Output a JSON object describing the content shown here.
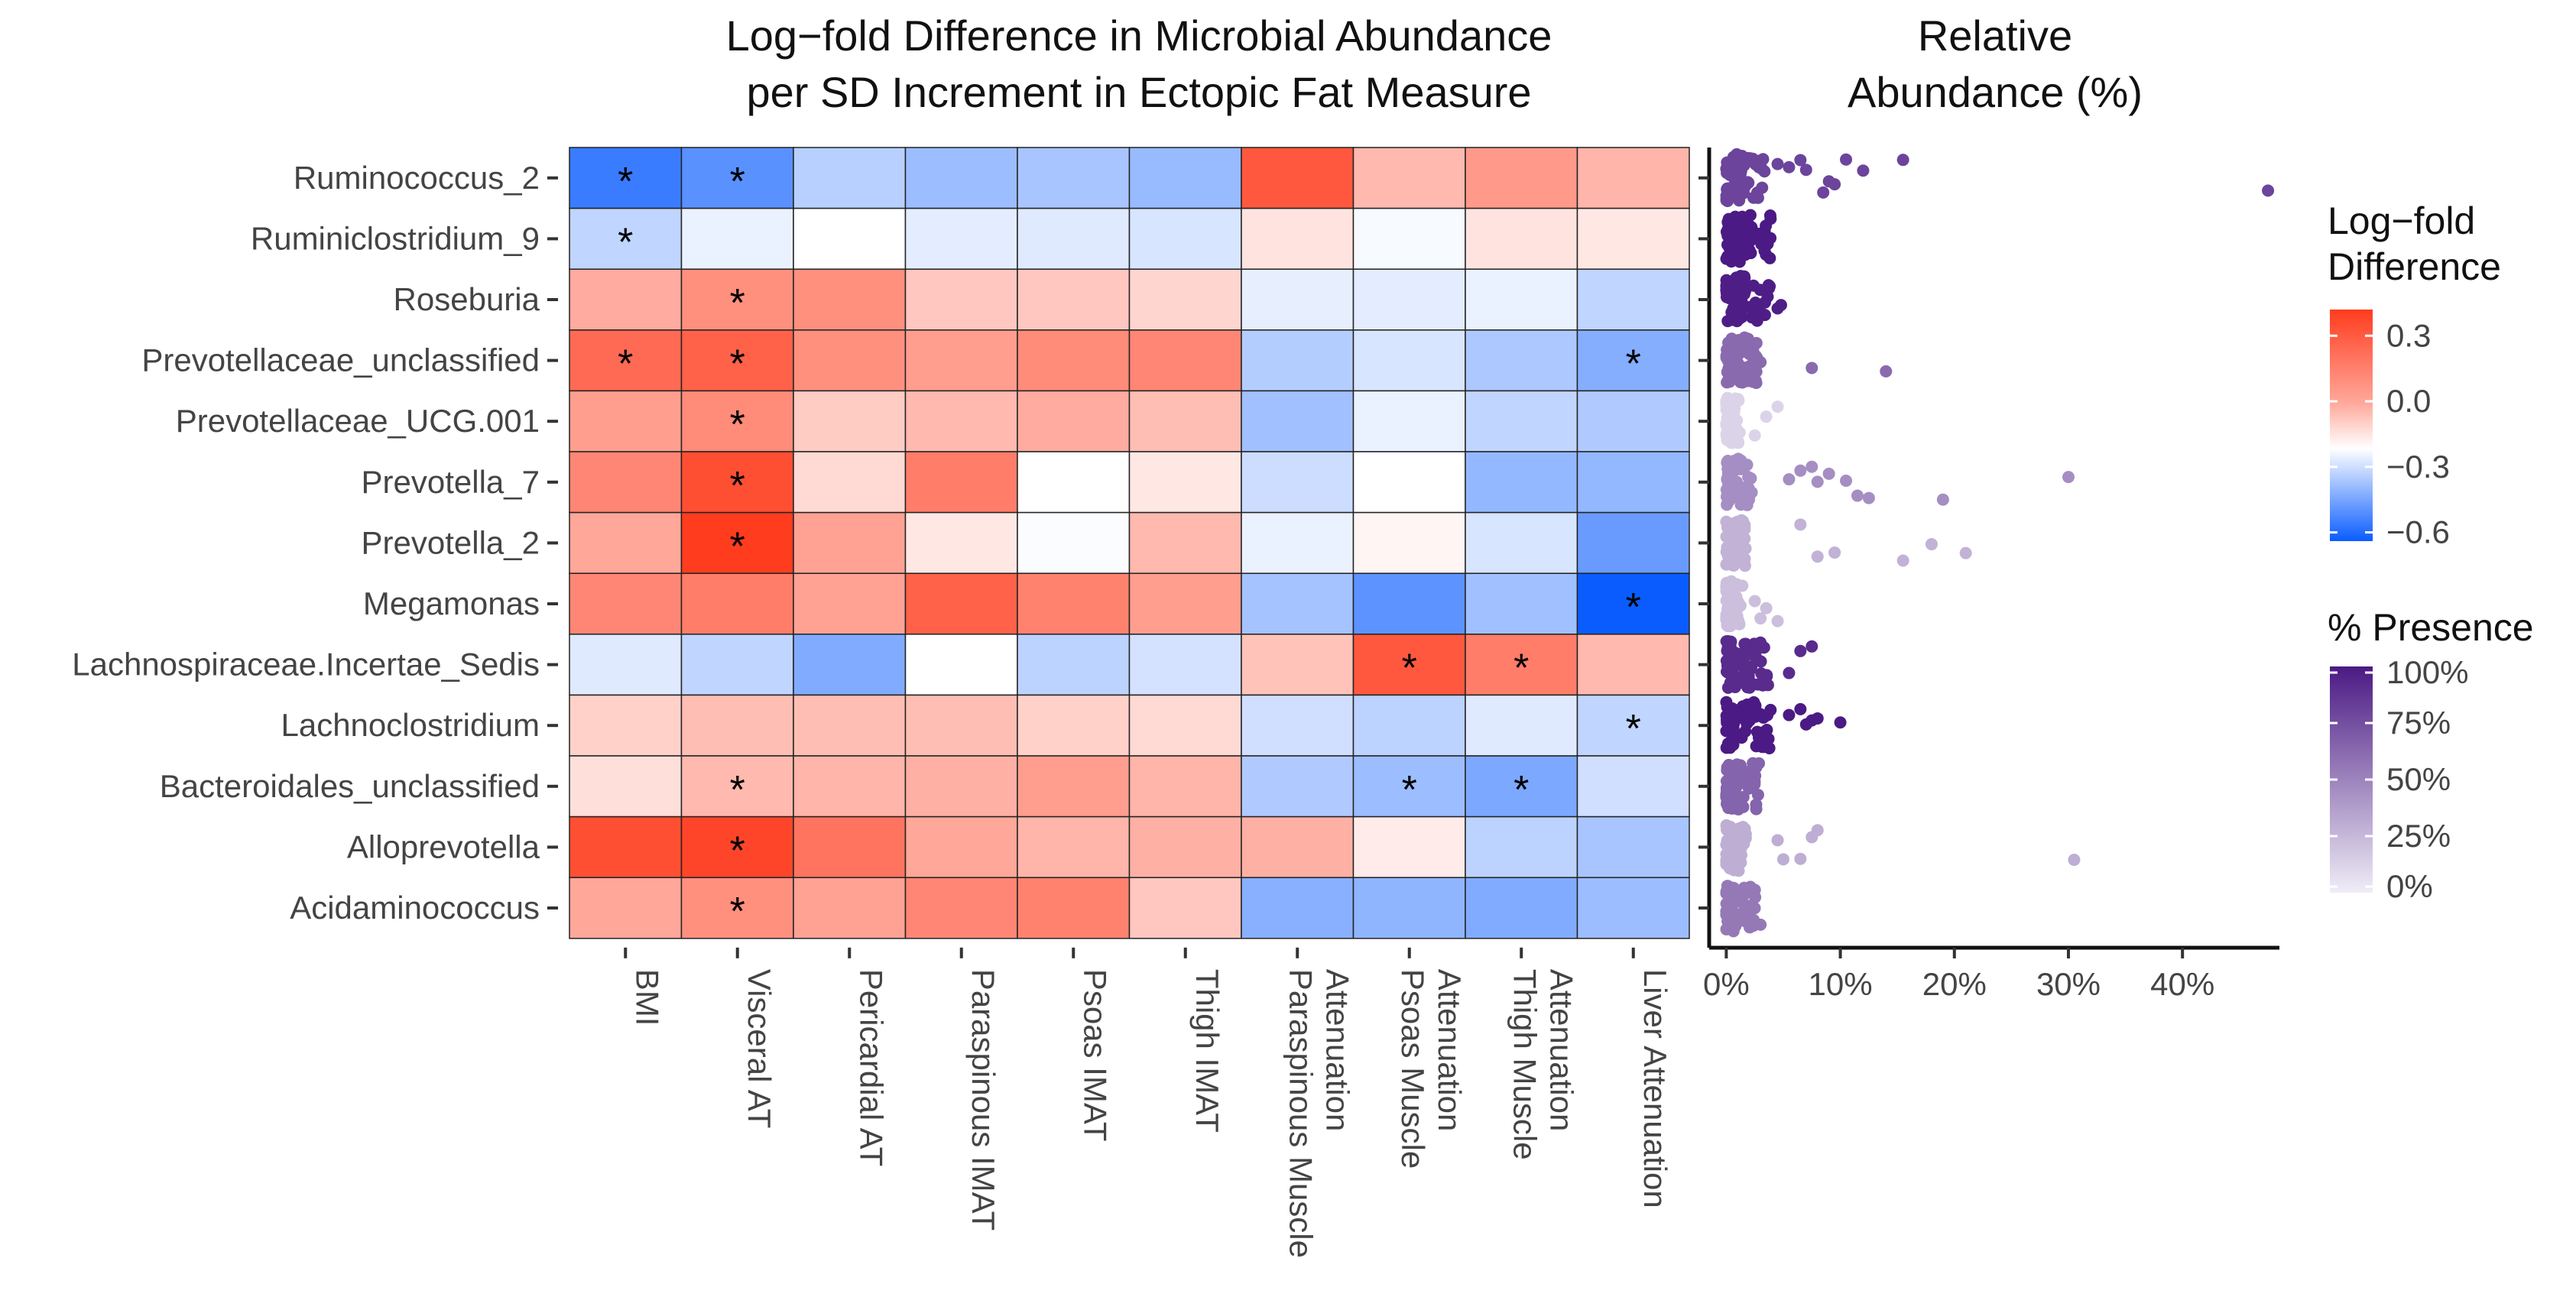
{
  "chart_data": [
    {
      "type": "heatmap",
      "title_lines": [
        "Log−fold Difference in Microbial Abundance",
        "per SD Increment in Ectopic Fat Measure"
      ],
      "rows": [
        "Ruminococcus_2",
        "Ruminiclostridium_9",
        "Roseburia",
        "Prevotellaceae_unclassified",
        "Prevotellaceae_UCG.001",
        "Prevotella_7",
        "Prevotella_2",
        "Megamonas",
        "Lachnospiraceae.Incertae_Sedis",
        "Lachnoclostridium",
        "Bacteroidales_unclassified",
        "Alloprevotella",
        "Acidaminococcus"
      ],
      "columns": [
        [
          "BMI"
        ],
        [
          "Visceral AT"
        ],
        [
          "Pericardial AT"
        ],
        [
          "Paraspinous IMAT"
        ],
        [
          "Psoas IMAT"
        ],
        [
          "Thigh IMAT"
        ],
        [
          "Paraspinous Muscle",
          "Attenuation"
        ],
        [
          "Psoas Muscle",
          "Attenuation"
        ],
        [
          "Thigh Muscle",
          "Attenuation"
        ],
        [
          "Liver Attenuation"
        ]
      ],
      "values": [
        [
          -0.5,
          -0.42,
          -0.18,
          -0.25,
          -0.22,
          -0.26,
          0.36,
          0.15,
          0.22,
          0.16
        ],
        [
          -0.16,
          -0.05,
          0.0,
          -0.07,
          -0.08,
          -0.1,
          0.06,
          -0.02,
          0.06,
          0.05
        ],
        [
          0.18,
          0.24,
          0.24,
          0.12,
          0.12,
          0.09,
          -0.06,
          -0.07,
          -0.05,
          -0.16
        ],
        [
          0.32,
          0.34,
          0.24,
          0.21,
          0.25,
          0.26,
          -0.19,
          -0.1,
          -0.21,
          -0.31
        ],
        [
          0.21,
          0.25,
          0.11,
          0.15,
          0.18,
          0.14,
          -0.24,
          -0.05,
          -0.16,
          -0.2
        ],
        [
          0.26,
          0.38,
          0.08,
          0.28,
          0.0,
          0.05,
          -0.13,
          0.0,
          -0.27,
          -0.27
        ],
        [
          0.19,
          0.42,
          0.2,
          0.05,
          -0.01,
          0.15,
          -0.05,
          0.02,
          -0.1,
          -0.38
        ],
        [
          0.26,
          0.28,
          0.2,
          0.34,
          0.27,
          0.21,
          -0.23,
          -0.41,
          -0.24,
          -0.62
        ],
        [
          -0.08,
          -0.16,
          -0.32,
          0.0,
          -0.17,
          -0.11,
          0.13,
          0.36,
          0.28,
          0.15
        ],
        [
          0.1,
          0.14,
          0.14,
          0.14,
          0.1,
          0.08,
          -0.12,
          -0.17,
          -0.08,
          -0.16
        ],
        [
          0.07,
          0.15,
          0.16,
          0.17,
          0.21,
          0.16,
          -0.2,
          -0.25,
          -0.33,
          -0.12
        ],
        [
          0.38,
          0.4,
          0.3,
          0.19,
          0.16,
          0.17,
          0.17,
          0.04,
          -0.17,
          -0.22
        ],
        [
          0.19,
          0.24,
          0.2,
          0.26,
          0.27,
          0.12,
          -0.3,
          -0.28,
          -0.32,
          -0.25
        ]
      ],
      "significant": [
        [
          0,
          0
        ],
        [
          0,
          1
        ],
        [
          1,
          0
        ],
        [
          2,
          1
        ],
        [
          3,
          0
        ],
        [
          3,
          1
        ],
        [
          3,
          9
        ],
        [
          4,
          1
        ],
        [
          5,
          1
        ],
        [
          6,
          1
        ],
        [
          7,
          9
        ],
        [
          8,
          7
        ],
        [
          8,
          8
        ],
        [
          9,
          9
        ],
        [
          10,
          1
        ],
        [
          10,
          7
        ],
        [
          10,
          8
        ],
        [
          11,
          1
        ],
        [
          12,
          1
        ]
      ],
      "sig_marker": "*",
      "color_scale": {
        "low": "#0a5cff",
        "mid": "#ffffff",
        "high": "#ff3c1e",
        "limits": [
          -0.62,
          0.42
        ]
      }
    },
    {
      "type": "scatter",
      "title_lines": [
        "Relative",
        "Abundance (%)"
      ],
      "x_ticks": [
        "0%",
        "10%",
        "20%",
        "30%",
        "40%"
      ],
      "x_tick_values": [
        0,
        10,
        20,
        30,
        40
      ],
      "xlim": [
        -1.5,
        48.5
      ],
      "series": [
        {
          "row": "Ruminococcus_2",
          "presence": 80,
          "outliers": [
            7,
            8.5,
            9.5,
            9,
            5.5,
            12,
            15.5,
            47.5,
            6.5,
            10.5,
            4.5
          ]
        },
        {
          "row": "Ruminiclostridium_9",
          "presence": 100,
          "outliers": [
            1.2,
            1.5,
            0.8
          ]
        },
        {
          "row": "Roseburia",
          "presence": 98,
          "outliers": [
            4.5,
            4.8,
            3.8,
            2.5
          ]
        },
        {
          "row": "Prevotellaceae_unclassified",
          "presence": 62,
          "outliers": [
            14,
            7.5,
            2.5,
            3
          ]
        },
        {
          "row": "Prevotellaceae_UCG.001",
          "presence": 12,
          "outliers": [
            3.5,
            2.5,
            4.5
          ]
        },
        {
          "row": "Prevotella_7",
          "presence": 45,
          "outliers": [
            9,
            10.5,
            11.5,
            12.5,
            19,
            30,
            8,
            6.5,
            7.5,
            5.5
          ]
        },
        {
          "row": "Prevotella_2",
          "presence": 28,
          "outliers": [
            15.5,
            18,
            21,
            8,
            9.5,
            6.5
          ]
        },
        {
          "row": "Megamonas",
          "presence": 22,
          "outliers": [
            3,
            3.5,
            4.5,
            2.5
          ]
        },
        {
          "row": "Lachnospiraceae.Incertae_Sedis",
          "presence": 92,
          "outliers": [
            6.5,
            7.5,
            5.5
          ]
        },
        {
          "row": "Lachnoclostridium",
          "presence": 100,
          "outliers": [
            10,
            8,
            7.5,
            6.5,
            5.5,
            7
          ]
        },
        {
          "row": "Bacteroidales_unclassified",
          "presence": 65,
          "outliers": [
            1.5,
            2,
            1.2
          ]
        },
        {
          "row": "Alloprevotella",
          "presence": 30,
          "outliers": [
            5,
            6.5,
            7.5,
            8,
            30.5,
            4.5
          ]
        },
        {
          "row": "Acidaminococcus",
          "presence": 55,
          "outliers": [
            2.5,
            1.8,
            3
          ]
        }
      ]
    }
  ],
  "legend_lfd": {
    "title_lines": [
      "Log−fold",
      "Difference"
    ],
    "ticks": [
      "0.3",
      "0.0",
      "−0.3",
      "−0.6"
    ],
    "tick_values": [
      0.3,
      0.0,
      -0.3,
      -0.6
    ]
  },
  "legend_presence": {
    "title": "% Presence",
    "ticks": [
      "100%",
      "75%",
      "50%",
      "25%",
      "0%"
    ],
    "tick_values": [
      100,
      75,
      50,
      25,
      0
    ],
    "colors": {
      "low": "#efedf6",
      "high": "#4b1a84"
    }
  }
}
